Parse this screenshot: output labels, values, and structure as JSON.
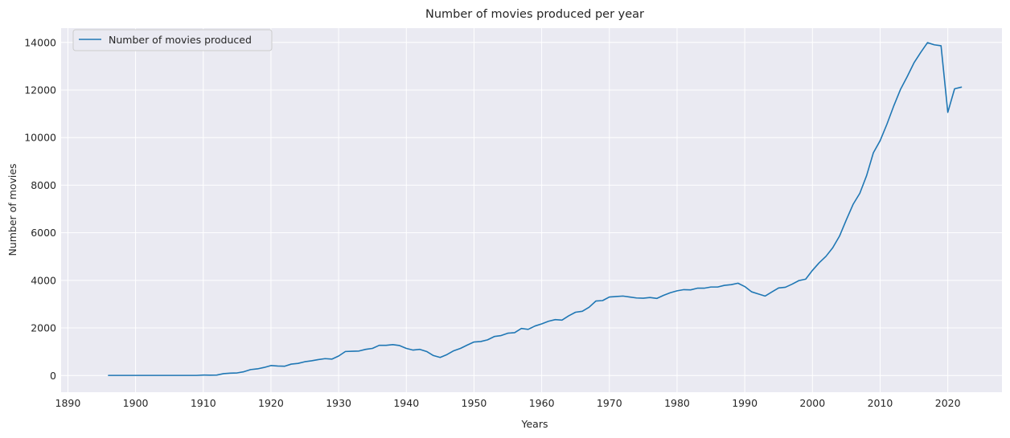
{
  "chart_data": {
    "type": "line",
    "title": "Number of movies produced per year",
    "xlabel": "Years",
    "ylabel": "Number of movies",
    "xlim": [
      1889,
      2028
    ],
    "ylim": [
      -700,
      14600
    ],
    "xticks": [
      1890,
      1900,
      1910,
      1920,
      1930,
      1940,
      1950,
      1960,
      1970,
      1980,
      1990,
      2000,
      2010,
      2020
    ],
    "yticks": [
      0,
      2000,
      4000,
      6000,
      8000,
      10000,
      12000,
      14000
    ],
    "grid": true,
    "legend_position": "upper-left",
    "colors": {
      "line": "#1f77b4",
      "plot_background": "#eaeaf2",
      "grid": "#ffffff"
    },
    "series": [
      {
        "name": "Number of movies produced",
        "x": [
          1896,
          1897,
          1898,
          1899,
          1900,
          1901,
          1902,
          1903,
          1904,
          1905,
          1906,
          1907,
          1908,
          1909,
          1910,
          1911,
          1912,
          1913,
          1914,
          1915,
          1916,
          1917,
          1918,
          1919,
          1920,
          1921,
          1922,
          1923,
          1924,
          1925,
          1926,
          1927,
          1928,
          1929,
          1930,
          1931,
          1932,
          1933,
          1934,
          1935,
          1936,
          1937,
          1938,
          1939,
          1940,
          1941,
          1942,
          1943,
          1944,
          1945,
          1946,
          1947,
          1948,
          1949,
          1950,
          1951,
          1952,
          1953,
          1954,
          1955,
          1956,
          1957,
          1958,
          1959,
          1960,
          1961,
          1962,
          1963,
          1964,
          1965,
          1966,
          1967,
          1968,
          1969,
          1970,
          1971,
          1972,
          1973,
          1974,
          1975,
          1976,
          1977,
          1978,
          1979,
          1980,
          1981,
          1982,
          1983,
          1984,
          1985,
          1986,
          1987,
          1988,
          1989,
          1990,
          1991,
          1992,
          1993,
          1994,
          1995,
          1996,
          1997,
          1998,
          1999,
          2000,
          2001,
          2002,
          2003,
          2004,
          2005,
          2006,
          2007,
          2008,
          2009,
          2010,
          2011,
          2012,
          2013,
          2014,
          2015,
          2016,
          2017,
          2018,
          2019,
          2020,
          2021,
          2022
        ],
        "y": [
          5,
          5,
          5,
          5,
          5,
          5,
          5,
          5,
          5,
          5,
          5,
          5,
          5,
          5,
          20,
          15,
          20,
          80,
          100,
          110,
          160,
          250,
          280,
          340,
          420,
          400,
          390,
          480,
          510,
          580,
          620,
          670,
          710,
          690,
          820,
          1010,
          1020,
          1030,
          1100,
          1140,
          1270,
          1270,
          1300,
          1260,
          1140,
          1070,
          1100,
          1010,
          840,
          760,
          880,
          1040,
          1140,
          1280,
          1410,
          1430,
          1500,
          1640,
          1680,
          1780,
          1800,
          1980,
          1940,
          2080,
          2170,
          2280,
          2350,
          2330,
          2510,
          2660,
          2700,
          2870,
          3130,
          3150,
          3300,
          3320,
          3340,
          3300,
          3260,
          3250,
          3280,
          3240,
          3370,
          3480,
          3560,
          3610,
          3600,
          3670,
          3670,
          3720,
          3720,
          3790,
          3820,
          3880,
          3740,
          3520,
          3430,
          3340,
          3510,
          3680,
          3710,
          3840,
          3990,
          4050,
          4420,
          4740,
          5010,
          5370,
          5860,
          6540,
          7190,
          7660,
          8400,
          9360,
          9870,
          10560,
          11320,
          12020,
          12560,
          13140,
          13580,
          13990,
          13900,
          13860,
          11060,
          12050,
          12120
        ]
      }
    ]
  }
}
